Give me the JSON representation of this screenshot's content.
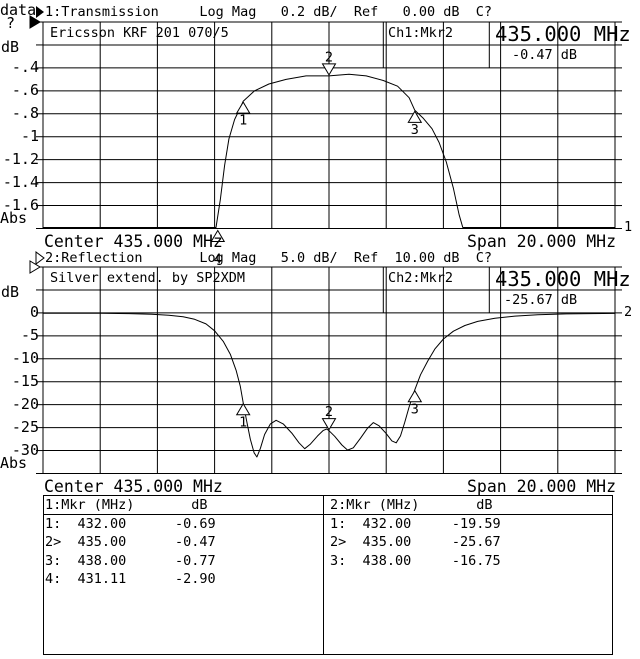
{
  "colors": {
    "fg": "#000000",
    "bg": "#ffffff"
  },
  "status": {
    "line1": "data",
    "line2": "?"
  },
  "ch1": {
    "header": "1:Transmission     Log Mag   0.2 dB/  Ref   0.00 dB  C?",
    "device": "Ericsson KRF 201 070/5",
    "readout_label": "Ch1:Mkr2",
    "readout_freq": "435.000 MHz",
    "readout_value": "-0.47 dB",
    "axis_unit": "dB",
    "yticks": [
      "-.4",
      "-.6",
      "-.8",
      "-1",
      "-1.2",
      "-1.4",
      "-1.6"
    ],
    "abs_label": "Abs",
    "center": "Center 435.000 MHz",
    "span": "Span 20.000 MHz",
    "trace_number": "1"
  },
  "ch2": {
    "header": "2:Reflection       Log Mag   5.0 dB/  Ref  10.00 dB  C?",
    "device": "Silver extend. by SP2XDM",
    "readout_label": "Ch2:Mkr2",
    "readout_freq": "435.000 MHz",
    "readout_value": "-25.67 dB",
    "axis_unit": "dB",
    "yticks": [
      "0",
      "-5",
      "-10",
      "-15",
      "-20",
      "-25",
      "-30"
    ],
    "abs_label": "Abs",
    "center": "Center 435.000 MHz",
    "span": "Span 20.000 MHz",
    "trace_number": "2"
  },
  "marker_table": {
    "left": {
      "header": "1:Mkr (MHz)       dB",
      "rows": [
        "1:  432.00      -0.69",
        "2>  435.00      -0.47",
        "3:  438.00      -0.77",
        "4:  431.11      -2.90"
      ]
    },
    "right": {
      "header": "2:Mkr (MHz)       dB",
      "rows": [
        "1:  432.00     -19.59",
        "2>  435.00     -25.67",
        "3:  438.00     -16.75"
      ]
    }
  },
  "chart_data": [
    {
      "type": "line",
      "channel": 1,
      "title": "Transmission Log Mag",
      "scale_per_div": 0.2,
      "ref_dB": 0.0,
      "center_MHz": 435.0,
      "span_MHz": 20.0,
      "x_range_MHz": [
        425,
        445
      ],
      "divisions": 9,
      "markers": [
        {
          "n": "1",
          "MHz": 432.0,
          "dB": -0.69
        },
        {
          "n": "2",
          "MHz": 435.0,
          "dB": -0.47,
          "active": true
        },
        {
          "n": "3",
          "MHz": 438.0,
          "dB": -0.77
        },
        {
          "n": "4",
          "MHz": 431.11,
          "dB": -2.9
        }
      ],
      "trace": [
        [
          425,
          -1.83
        ],
        [
          431.05,
          -1.83
        ],
        [
          431.2,
          -1.55
        ],
        [
          431.35,
          -1.25
        ],
        [
          431.5,
          -1.02
        ],
        [
          431.7,
          -0.85
        ],
        [
          431.95,
          -0.72
        ],
        [
          432.0,
          -0.69
        ],
        [
          432.4,
          -0.6
        ],
        [
          432.9,
          -0.54
        ],
        [
          433.5,
          -0.5
        ],
        [
          434.2,
          -0.47
        ],
        [
          435.0,
          -0.47
        ],
        [
          435.7,
          -0.455
        ],
        [
          436.3,
          -0.47
        ],
        [
          436.9,
          -0.51
        ],
        [
          437.4,
          -0.56
        ],
        [
          437.8,
          -0.66
        ],
        [
          438.0,
          -0.77
        ],
        [
          438.3,
          -0.84
        ],
        [
          438.6,
          -0.93
        ],
        [
          438.85,
          -1.05
        ],
        [
          439.1,
          -1.22
        ],
        [
          439.35,
          -1.45
        ],
        [
          439.55,
          -1.68
        ],
        [
          439.68,
          -1.83
        ],
        [
          445,
          -1.83
        ]
      ]
    },
    {
      "type": "line",
      "channel": 2,
      "title": "Reflection Log Mag",
      "scale_per_div": 5.0,
      "ref_dB": 10.0,
      "center_MHz": 435.0,
      "span_MHz": 20.0,
      "x_range_MHz": [
        425,
        445
      ],
      "divisions": 9,
      "markers": [
        {
          "n": "1",
          "MHz": 432.0,
          "dB": -19.59
        },
        {
          "n": "2",
          "MHz": 435.0,
          "dB": -25.67,
          "active": true
        },
        {
          "n": "3",
          "MHz": 438.0,
          "dB": -16.75
        }
      ],
      "trace": [
        [
          425,
          -0.07
        ],
        [
          427,
          -0.1
        ],
        [
          428,
          -0.16
        ],
        [
          428.8,
          -0.28
        ],
        [
          429.4,
          -0.5
        ],
        [
          429.9,
          -0.85
        ],
        [
          430.3,
          -1.4
        ],
        [
          430.7,
          -2.4
        ],
        [
          431.0,
          -3.9
        ],
        [
          431.3,
          -6.2
        ],
        [
          431.55,
          -9.0
        ],
        [
          431.75,
          -12.5
        ],
        [
          431.9,
          -16.0
        ],
        [
          432.0,
          -19.59
        ],
        [
          432.12,
          -23.5
        ],
        [
          432.25,
          -27.5
        ],
        [
          432.38,
          -30.5
        ],
        [
          432.48,
          -31.4
        ],
        [
          432.6,
          -29.5
        ],
        [
          432.75,
          -26.5
        ],
        [
          432.95,
          -24.2
        ],
        [
          433.15,
          -23.4
        ],
        [
          433.4,
          -24.2
        ],
        [
          433.7,
          -26.2
        ],
        [
          433.95,
          -28.3
        ],
        [
          434.15,
          -29.6
        ],
        [
          434.35,
          -28.6
        ],
        [
          434.6,
          -26.8
        ],
        [
          434.8,
          -25.6
        ],
        [
          434.92,
          -25.3
        ],
        [
          435.0,
          -25.67
        ],
        [
          435.2,
          -26.9
        ],
        [
          435.45,
          -28.8
        ],
        [
          435.65,
          -29.9
        ],
        [
          435.85,
          -29.4
        ],
        [
          436.1,
          -27.3
        ],
        [
          436.35,
          -25.1
        ],
        [
          436.55,
          -23.9
        ],
        [
          436.75,
          -24.6
        ],
        [
          437.0,
          -26.3
        ],
        [
          437.2,
          -27.9
        ],
        [
          437.35,
          -28.3
        ],
        [
          437.5,
          -26.8
        ],
        [
          437.65,
          -23.8
        ],
        [
          437.8,
          -20.5
        ],
        [
          438.0,
          -16.75
        ],
        [
          438.2,
          -13.5
        ],
        [
          438.45,
          -10.5
        ],
        [
          438.7,
          -7.9
        ],
        [
          439.0,
          -5.7
        ],
        [
          439.35,
          -4.0
        ],
        [
          439.75,
          -2.75
        ],
        [
          440.2,
          -1.85
        ],
        [
          440.8,
          -1.15
        ],
        [
          441.5,
          -0.7
        ],
        [
          442.3,
          -0.4
        ],
        [
          443.3,
          -0.22
        ],
        [
          445,
          -0.12
        ]
      ]
    }
  ]
}
